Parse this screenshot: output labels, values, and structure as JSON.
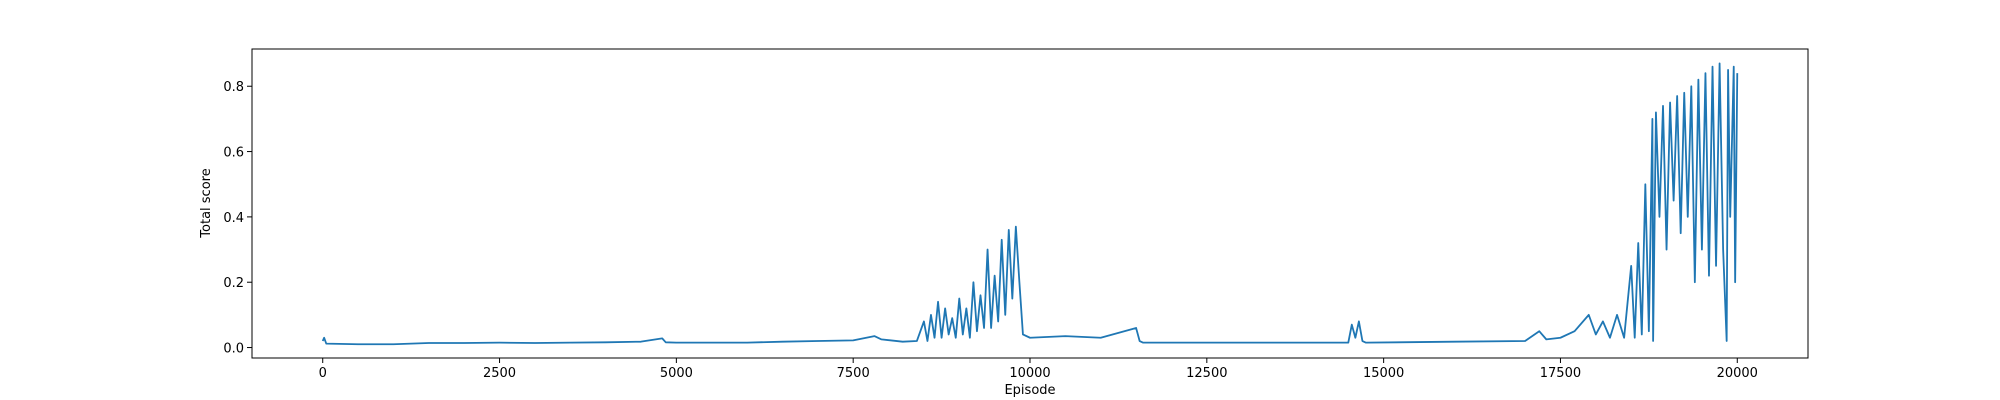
{
  "chart_data": {
    "type": "line",
    "xlabel": "Episode",
    "ylabel": "Total score",
    "x": [
      0,
      20,
      50,
      500,
      1000,
      1500,
      2000,
      2500,
      3000,
      3500,
      4000,
      4500,
      4800,
      4850,
      5000,
      6000,
      6500,
      7000,
      7500,
      7800,
      7900,
      8200,
      8400,
      8500,
      8550,
      8600,
      8650,
      8700,
      8750,
      8800,
      8850,
      8900,
      8950,
      9000,
      9050,
      9100,
      9150,
      9200,
      9250,
      9300,
      9350,
      9400,
      9450,
      9500,
      9550,
      9600,
      9650,
      9700,
      9750,
      9800,
      9850,
      9900,
      10000,
      10500,
      11000,
      11500,
      11550,
      11600,
      12500,
      13500,
      14500,
      14550,
      14600,
      14650,
      14700,
      14750,
      16000,
      17000,
      17200,
      17300,
      17500,
      17700,
      17900,
      18000,
      18100,
      18200,
      18300,
      18400,
      18500,
      18550,
      18600,
      18650,
      18700,
      18750,
      18800,
      18810,
      18850,
      18900,
      18950,
      19000,
      19050,
      19100,
      19150,
      19200,
      19250,
      19300,
      19350,
      19400,
      19450,
      19500,
      19550,
      19600,
      19650,
      19700,
      19750,
      19800,
      19850,
      19870,
      19900,
      19950,
      19970,
      20000
    ],
    "series": [
      {
        "name": "Total score",
        "color": "#1f77b4",
        "values": [
          0.02,
          0.03,
          0.012,
          0.01,
          0.01,
          0.014,
          0.014,
          0.015,
          0.014,
          0.015,
          0.016,
          0.018,
          0.028,
          0.016,
          0.015,
          0.015,
          0.018,
          0.02,
          0.022,
          0.035,
          0.025,
          0.018,
          0.02,
          0.08,
          0.02,
          0.1,
          0.03,
          0.14,
          0.03,
          0.12,
          0.04,
          0.09,
          0.03,
          0.15,
          0.04,
          0.12,
          0.03,
          0.2,
          0.05,
          0.16,
          0.06,
          0.3,
          0.06,
          0.22,
          0.08,
          0.33,
          0.1,
          0.36,
          0.15,
          0.37,
          0.2,
          0.04,
          0.03,
          0.035,
          0.03,
          0.06,
          0.02,
          0.015,
          0.015,
          0.015,
          0.015,
          0.07,
          0.03,
          0.08,
          0.02,
          0.015,
          0.018,
          0.02,
          0.05,
          0.025,
          0.03,
          0.05,
          0.1,
          0.04,
          0.08,
          0.03,
          0.1,
          0.03,
          0.25,
          0.03,
          0.32,
          0.04,
          0.5,
          0.05,
          0.7,
          0.02,
          0.72,
          0.4,
          0.74,
          0.3,
          0.75,
          0.45,
          0.77,
          0.35,
          0.78,
          0.4,
          0.8,
          0.2,
          0.82,
          0.3,
          0.84,
          0.22,
          0.86,
          0.25,
          0.87,
          0.3,
          0.02,
          0.85,
          0.4,
          0.86,
          0.2,
          0.84
        ]
      }
    ],
    "xlim": [
      -1000,
      21000
    ],
    "xticks": [
      0,
      2500,
      5000,
      7500,
      10000,
      12500,
      15000,
      17500,
      20000
    ],
    "ylim": [
      -0.032,
      0.914
    ],
    "yticks": [
      {
        "value": 0,
        "label": "0.0"
      },
      0.2,
      0.4,
      0.6,
      0.8
    ]
  }
}
